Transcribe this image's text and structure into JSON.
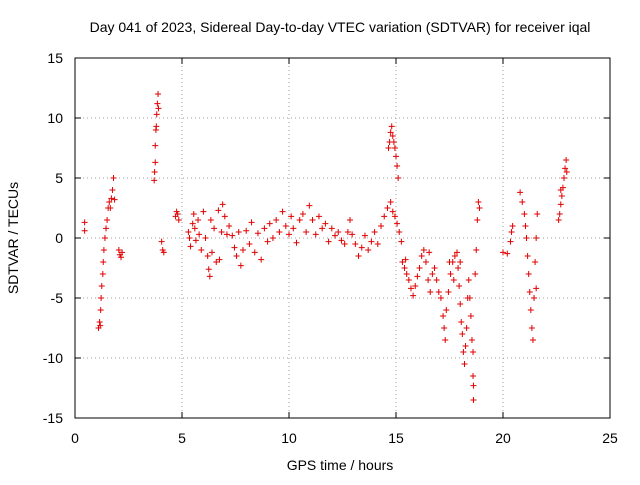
{
  "chart_data": {
    "type": "scatter",
    "title": "Day 041 of 2023, Sidereal Day-to-day VTEC variation (SDTVAR) for receiver iqal",
    "xlabel": "GPS time / hours",
    "ylabel": "SDTVAR / TECUs",
    "xlim": [
      0,
      25
    ],
    "ylim": [
      -15,
      15
    ],
    "xticks": [
      0,
      5,
      10,
      15,
      20,
      25
    ],
    "yticks": [
      -15,
      -10,
      -5,
      0,
      5,
      10,
      15
    ],
    "xtick_labels": [
      "0",
      "5",
      "10",
      "15",
      "20",
      "25"
    ],
    "ytick_labels": [
      "-15",
      "-10",
      "-5",
      "0",
      "5",
      "10",
      "15"
    ],
    "grid": true,
    "legend": "none",
    "marker": "+",
    "color": "#e00000",
    "series": [
      {
        "name": "SDTVAR",
        "points": [
          [
            0.45,
            1.3
          ],
          [
            0.45,
            0.6
          ],
          [
            1.1,
            -7.5
          ],
          [
            1.15,
            -7.0
          ],
          [
            1.2,
            -6.0
          ],
          [
            1.22,
            -5.0
          ],
          [
            1.25,
            -4.0
          ],
          [
            1.3,
            -3.0
          ],
          [
            1.32,
            -2.0
          ],
          [
            1.35,
            -1.0
          ],
          [
            1.4,
            0.0
          ],
          [
            1.45,
            0.8
          ],
          [
            1.5,
            1.5
          ],
          [
            1.55,
            2.5
          ],
          [
            1.6,
            3.0
          ],
          [
            1.7,
            3.3
          ],
          [
            1.75,
            4.0
          ],
          [
            1.8,
            5.0
          ],
          [
            1.85,
            3.2
          ],
          [
            1.65,
            2.5
          ],
          [
            1.18,
            -7.3
          ],
          [
            2.05,
            -1.0
          ],
          [
            2.1,
            -1.4
          ],
          [
            2.15,
            -1.6
          ],
          [
            2.2,
            -1.2
          ],
          [
            3.7,
            4.8
          ],
          [
            3.72,
            5.5
          ],
          [
            3.75,
            6.3
          ],
          [
            3.75,
            7.7
          ],
          [
            3.78,
            9.0
          ],
          [
            3.8,
            9.3
          ],
          [
            3.82,
            10.3
          ],
          [
            3.85,
            11.2
          ],
          [
            3.88,
            12.0
          ],
          [
            3.9,
            10.8
          ],
          [
            4.05,
            -0.3
          ],
          [
            4.1,
            -1.0
          ],
          [
            4.15,
            -1.2
          ],
          [
            4.7,
            1.8
          ],
          [
            4.75,
            2.2
          ],
          [
            4.8,
            2.0
          ],
          [
            4.85,
            1.5
          ],
          [
            5.3,
            0.5
          ],
          [
            5.35,
            0.0
          ],
          [
            5.4,
            -0.7
          ],
          [
            5.5,
            1.2
          ],
          [
            5.55,
            2.0
          ],
          [
            5.6,
            0.8
          ],
          [
            5.65,
            -0.2
          ],
          [
            5.75,
            1.5
          ],
          [
            5.8,
            0.3
          ],
          [
            5.9,
            -1.0
          ],
          [
            6.0,
            2.2
          ],
          [
            6.1,
            0.0
          ],
          [
            6.2,
            -1.5
          ],
          [
            6.25,
            -2.6
          ],
          [
            6.3,
            -3.2
          ],
          [
            6.35,
            1.5
          ],
          [
            6.4,
            -1.2
          ],
          [
            6.5,
            0.8
          ],
          [
            6.6,
            -2.0
          ],
          [
            6.7,
            2.3
          ],
          [
            6.75,
            -1.8
          ],
          [
            6.85,
            0.5
          ],
          [
            6.9,
            2.8
          ],
          [
            7.0,
            1.8
          ],
          [
            7.1,
            0.3
          ],
          [
            7.2,
            1.0
          ],
          [
            7.35,
            0.2
          ],
          [
            7.45,
            -0.8
          ],
          [
            7.55,
            -1.5
          ],
          [
            7.65,
            0.5
          ],
          [
            7.75,
            -2.3
          ],
          [
            7.85,
            -1.0
          ],
          [
            8.0,
            0.6
          ],
          [
            8.15,
            -0.5
          ],
          [
            8.25,
            1.3
          ],
          [
            8.4,
            -1.2
          ],
          [
            8.55,
            0.4
          ],
          [
            8.7,
            -1.8
          ],
          [
            8.85,
            0.8
          ],
          [
            9.0,
            -0.3
          ],
          [
            9.1,
            1.2
          ],
          [
            9.25,
            0.0
          ],
          [
            9.4,
            1.5
          ],
          [
            9.55,
            0.5
          ],
          [
            9.7,
            2.2
          ],
          [
            9.85,
            1.0
          ],
          [
            10.0,
            0.3
          ],
          [
            10.1,
            1.8
          ],
          [
            10.2,
            0.8
          ],
          [
            10.35,
            -0.4
          ],
          [
            10.5,
            1.5
          ],
          [
            10.65,
            2.0
          ],
          [
            10.8,
            0.5
          ],
          [
            10.95,
            2.7
          ],
          [
            11.1,
            1.5
          ],
          [
            11.25,
            0.3
          ],
          [
            11.4,
            1.8
          ],
          [
            11.55,
            0.8
          ],
          [
            11.7,
            1.2
          ],
          [
            11.85,
            -0.3
          ],
          [
            12.0,
            0.8
          ],
          [
            12.15,
            0.2
          ],
          [
            12.3,
            0.5
          ],
          [
            12.45,
            -0.2
          ],
          [
            12.6,
            -0.5
          ],
          [
            12.75,
            0.5
          ],
          [
            12.85,
            1.5
          ],
          [
            12.95,
            0.3
          ],
          [
            13.1,
            -0.5
          ],
          [
            13.25,
            -1.5
          ],
          [
            13.4,
            -0.8
          ],
          [
            13.55,
            0.2
          ],
          [
            13.7,
            -1.0
          ],
          [
            13.85,
            -0.3
          ],
          [
            14.0,
            0.5
          ],
          [
            14.15,
            -0.5
          ],
          [
            14.3,
            1.0
          ],
          [
            14.45,
            1.8
          ],
          [
            14.6,
            2.5
          ],
          [
            14.75,
            3.0
          ],
          [
            14.85,
            2.2
          ],
          [
            14.95,
            1.8
          ],
          [
            15.05,
            1.2
          ],
          [
            15.15,
            0.5
          ],
          [
            15.25,
            -0.3
          ],
          [
            14.65,
            7.5
          ],
          [
            14.7,
            8.0
          ],
          [
            14.75,
            8.8
          ],
          [
            14.8,
            9.3
          ],
          [
            14.85,
            8.5
          ],
          [
            14.9,
            8.0
          ],
          [
            14.95,
            7.5
          ],
          [
            15.0,
            6.8
          ],
          [
            15.05,
            6.0
          ],
          [
            15.1,
            5.0
          ],
          [
            15.3,
            -2.0
          ],
          [
            15.4,
            -2.5
          ],
          [
            15.5,
            -3.0
          ],
          [
            15.6,
            -3.5
          ],
          [
            15.7,
            -4.2
          ],
          [
            15.8,
            -4.8
          ],
          [
            15.9,
            -4.0
          ],
          [
            16.0,
            -3.2
          ],
          [
            16.1,
            -2.5
          ],
          [
            16.2,
            -1.5
          ],
          [
            16.3,
            -1.0
          ],
          [
            16.4,
            -2.0
          ],
          [
            16.5,
            -3.5
          ],
          [
            16.6,
            -4.5
          ],
          [
            16.7,
            -3.0
          ],
          [
            16.8,
            -2.5
          ],
          [
            16.9,
            -3.5
          ],
          [
            17.0,
            -4.5
          ],
          [
            17.1,
            -5.0
          ],
          [
            17.2,
            -6.5
          ],
          [
            17.25,
            -7.5
          ],
          [
            17.3,
            -8.5
          ],
          [
            17.35,
            -6.0
          ],
          [
            17.45,
            -4.5
          ],
          [
            17.55,
            -3.0
          ],
          [
            17.65,
            -2.0
          ],
          [
            17.75,
            -1.5
          ],
          [
            17.85,
            -1.2
          ],
          [
            17.9,
            -2.5
          ],
          [
            17.95,
            -4.0
          ],
          [
            18.0,
            -5.5
          ],
          [
            18.05,
            -7.0
          ],
          [
            18.1,
            -8.0
          ],
          [
            18.15,
            -9.5
          ],
          [
            18.2,
            -10.5
          ],
          [
            18.25,
            -9.0
          ],
          [
            18.3,
            -7.5
          ],
          [
            18.35,
            -5.0
          ],
          [
            18.4,
            -3.5
          ],
          [
            18.45,
            -5.0
          ],
          [
            18.5,
            -6.5
          ],
          [
            18.55,
            -8.5
          ],
          [
            18.6,
            -9.5
          ],
          [
            18.6,
            -11.5
          ],
          [
            18.62,
            -12.3
          ],
          [
            18.62,
            -13.5
          ],
          [
            18.7,
            -3.0
          ],
          [
            18.75,
            -1.0
          ],
          [
            18.8,
            1.5
          ],
          [
            18.85,
            3.0
          ],
          [
            18.9,
            2.5
          ],
          [
            15.45,
            -1.8
          ],
          [
            16.55,
            -1.2
          ],
          [
            17.5,
            -2.0
          ],
          [
            17.7,
            -3.5
          ],
          [
            18.0,
            -2.0
          ],
          [
            20.0,
            -1.2
          ],
          [
            20.2,
            -1.3
          ],
          [
            20.35,
            -0.3
          ],
          [
            20.4,
            0.5
          ],
          [
            20.45,
            1.0
          ],
          [
            20.8,
            3.8
          ],
          [
            20.9,
            3.0
          ],
          [
            21.0,
            2.0
          ],
          [
            21.05,
            1.0
          ],
          [
            21.1,
            0.0
          ],
          [
            21.15,
            -1.5
          ],
          [
            21.2,
            -3.0
          ],
          [
            21.25,
            -4.5
          ],
          [
            21.3,
            -6.0
          ],
          [
            21.35,
            -7.5
          ],
          [
            21.4,
            -8.5
          ],
          [
            21.45,
            -5.0
          ],
          [
            21.5,
            -2.0
          ],
          [
            21.55,
            0.0
          ],
          [
            21.6,
            2.0
          ],
          [
            21.55,
            -4.2
          ],
          [
            22.6,
            1.5
          ],
          [
            22.65,
            2.0
          ],
          [
            22.7,
            2.8
          ],
          [
            22.75,
            3.5
          ],
          [
            22.8,
            4.2
          ],
          [
            22.85,
            5.0
          ],
          [
            22.9,
            5.8
          ],
          [
            22.95,
            6.5
          ],
          [
            22.98,
            5.5
          ],
          [
            22.7,
            4.0
          ]
        ]
      }
    ]
  }
}
